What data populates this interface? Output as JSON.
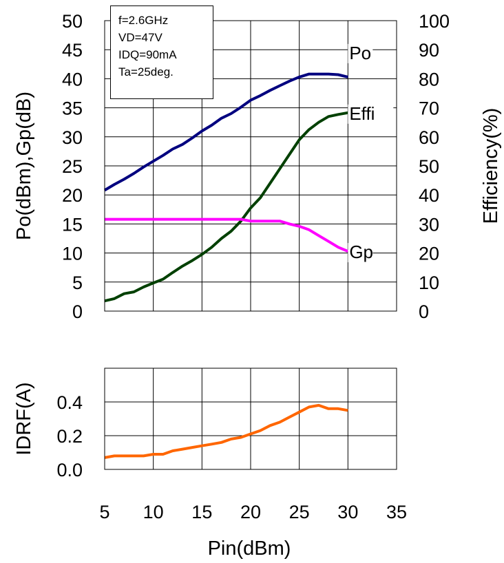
{
  "chart_data": [
    {
      "type": "line",
      "xlim": [
        5,
        35
      ],
      "xticks": [
        "5",
        "10",
        "15",
        "20",
        "25",
        "30",
        "35"
      ],
      "xlabel": "Pin(dBm)",
      "ylabel": "Po(dBm),Gp(dB)",
      "ylim": [
        0,
        50
      ],
      "yticks": [
        "0",
        "5",
        "10",
        "15",
        "20",
        "25",
        "30",
        "35",
        "40",
        "45",
        "50"
      ],
      "y2label": "Efficiency(%)",
      "y2lim": [
        0,
        100
      ],
      "y2ticks": [
        "0",
        "10",
        "20",
        "30",
        "40",
        "50",
        "60",
        "70",
        "80",
        "90",
        "100"
      ],
      "grid": true,
      "annotation": [
        "f=2.6GHz",
        "VD=47V",
        "IDQ=90mA",
        "Ta=25deg."
      ],
      "series": [
        {
          "name": "Po",
          "axis": "left",
          "color": "#00007f",
          "x": [
            5,
            6,
            7,
            8,
            9,
            10,
            11,
            12,
            13,
            14,
            15,
            16,
            17,
            18,
            19,
            20,
            21,
            22,
            23,
            24,
            25,
            26,
            27,
            28,
            29,
            30
          ],
          "values": [
            20.8,
            21.8,
            22.7,
            23.7,
            24.8,
            25.8,
            26.8,
            27.9,
            28.7,
            29.8,
            31.0,
            32.0,
            33.2,
            34.0,
            35.1,
            36.3,
            37.1,
            38.0,
            38.8,
            39.6,
            40.3,
            40.8,
            40.8,
            40.8,
            40.7,
            40.3
          ]
        },
        {
          "name": "Effi",
          "axis": "right",
          "color": "#004000",
          "x": [
            5,
            6,
            7,
            8,
            9,
            10,
            11,
            12,
            13,
            14,
            15,
            16,
            17,
            18,
            19,
            20,
            21,
            22,
            23,
            24,
            25,
            26,
            27,
            28,
            29,
            30
          ],
          "values": [
            3.5,
            4.3,
            6,
            6.6,
            8.3,
            9.7,
            11,
            13.3,
            15.5,
            17.4,
            19.5,
            22,
            25,
            27.5,
            31,
            35.5,
            39,
            44,
            49,
            54,
            59,
            62.5,
            65,
            67,
            67.7,
            68.3
          ]
        },
        {
          "name": "Gp",
          "axis": "left",
          "color": "#ff00ff",
          "x": [
            5,
            6,
            7,
            8,
            9,
            10,
            11,
            12,
            13,
            14,
            15,
            16,
            17,
            18,
            19,
            20,
            21,
            22,
            23,
            24,
            25,
            26,
            27,
            28,
            29,
            30
          ],
          "values": [
            15.8,
            15.8,
            15.8,
            15.8,
            15.8,
            15.8,
            15.8,
            15.8,
            15.8,
            15.8,
            15.8,
            15.8,
            15.8,
            15.8,
            15.8,
            15.5,
            15.5,
            15.5,
            15.5,
            15.0,
            14.6,
            14.0,
            13.0,
            12.0,
            11.0,
            10.3
          ]
        }
      ]
    },
    {
      "type": "line",
      "xlim": [
        5,
        35
      ],
      "xticks": [
        "5",
        "10",
        "15",
        "20",
        "25",
        "30",
        "35"
      ],
      "xlabel": "Pin(dBm)",
      "ylabel": "IDRF(A)",
      "ylim": [
        0,
        0.6
      ],
      "yticks": [
        "0.0",
        "0.2",
        "0.4"
      ],
      "grid": true,
      "series": [
        {
          "name": "IDRF",
          "color": "#ff6600",
          "x": [
            5,
            6,
            7,
            8,
            9,
            10,
            11,
            12,
            13,
            14,
            15,
            16,
            17,
            18,
            19,
            20,
            21,
            22,
            23,
            24,
            25,
            26,
            27,
            28,
            29,
            30
          ],
          "values": [
            0.07,
            0.08,
            0.08,
            0.08,
            0.08,
            0.09,
            0.09,
            0.11,
            0.12,
            0.13,
            0.14,
            0.15,
            0.16,
            0.18,
            0.19,
            0.21,
            0.23,
            0.26,
            0.28,
            0.31,
            0.34,
            0.37,
            0.38,
            0.36,
            0.36,
            0.35
          ]
        }
      ]
    }
  ]
}
